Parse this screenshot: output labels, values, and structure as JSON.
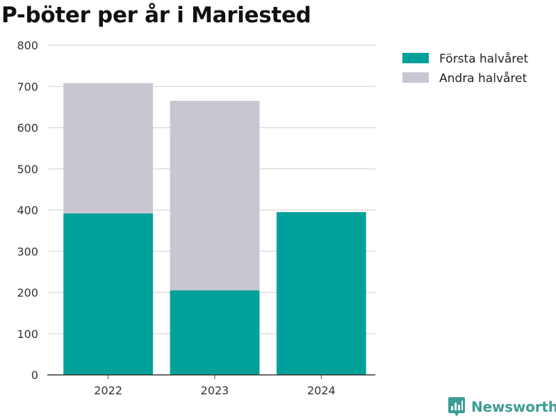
{
  "chart_data": {
    "type": "bar",
    "stacked": true,
    "title": "P-böter per år i Mariested",
    "categories": [
      "2022",
      "2023",
      "2024"
    ],
    "series": [
      {
        "name": "Första halvåret",
        "color": "#00a19a",
        "values": [
          392,
          205,
          395
        ]
      },
      {
        "name": "Andra halvåret",
        "color": "#c8c7d1",
        "values": [
          316,
          460,
          0
        ]
      }
    ],
    "xlabel": "",
    "ylabel": "",
    "ylim": [
      0,
      800
    ],
    "yticks": [
      "0",
      "100",
      "200",
      "300",
      "400",
      "500",
      "600",
      "700",
      "800"
    ],
    "grid": true,
    "legend_position": "top-right"
  },
  "branding": {
    "logo_text": "Newsworthy",
    "logo_icon": "bar-chart-pin-icon",
    "logo_color": "#3d9d96"
  }
}
